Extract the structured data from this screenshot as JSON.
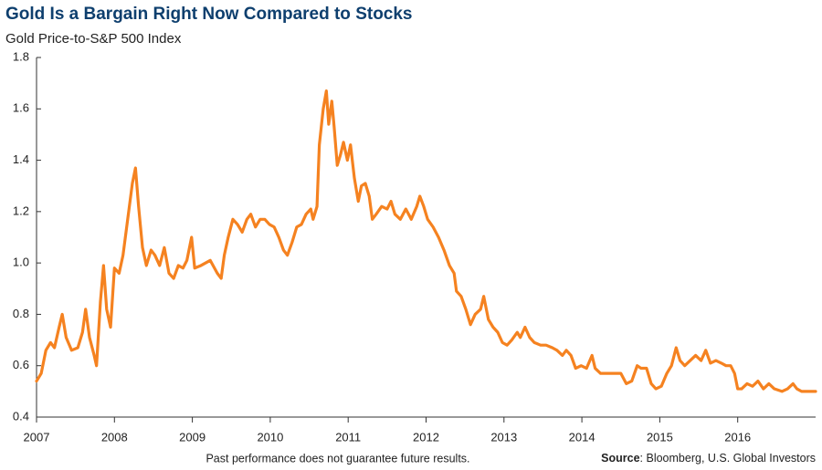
{
  "chart_data": {
    "type": "line",
    "title": "Gold Is a Bargain Right Now Compared to Stocks",
    "subtitle": "Gold Price-to-S&P 500 Index",
    "footnote": "Past performance does not guarantee future results.",
    "source": {
      "label": "Source",
      "text": ": Bloomberg, U.S. Global Investors"
    },
    "xlim": [
      2007,
      2017
    ],
    "xticks": [
      2007,
      2008,
      2009,
      2010,
      2011,
      2012,
      2013,
      2014,
      2015,
      2016
    ],
    "ylim": [
      0.4,
      1.8
    ],
    "yticks": [
      0.4,
      0.6,
      0.8,
      {
        "value": 1,
        "label": "1.0"
      },
      1.2,
      1.4,
      1.6,
      1.8
    ],
    "grid": false,
    "x": [
      2007.0,
      2007.06,
      2007.12,
      2007.18,
      2007.23,
      2007.29,
      2007.33,
      2007.38,
      2007.45,
      2007.53,
      2007.59,
      2007.63,
      2007.68,
      2007.74,
      2007.77,
      2007.82,
      2007.86,
      2007.9,
      2007.95,
      2008.0,
      2008.06,
      2008.11,
      2008.17,
      2008.23,
      2008.27,
      2008.31,
      2008.36,
      2008.41,
      2008.47,
      2008.52,
      2008.58,
      2008.64,
      2008.7,
      2008.76,
      2008.82,
      2008.88,
      2008.93,
      2008.99,
      2009.03,
      2009.11,
      2009.23,
      2009.32,
      2009.37,
      2009.41,
      2009.46,
      2009.52,
      2009.58,
      2009.64,
      2009.7,
      2009.75,
      2009.81,
      2009.87,
      2009.93,
      2009.99,
      2010.05,
      2010.11,
      2010.17,
      2010.22,
      2010.28,
      2010.34,
      2010.4,
      2010.46,
      2010.52,
      2010.55,
      2010.6,
      2010.63,
      2010.68,
      2010.72,
      2010.75,
      2010.79,
      2010.82,
      2010.86,
      2010.9,
      2010.94,
      2010.99,
      2011.03,
      2011.08,
      2011.13,
      2011.17,
      2011.22,
      2011.27,
      2011.31,
      2011.36,
      2011.43,
      2011.5,
      2011.55,
      2011.6,
      2011.67,
      2011.74,
      2011.81,
      2011.88,
      2011.92,
      2011.97,
      2012.02,
      2012.09,
      2012.16,
      2012.23,
      2012.3,
      2012.36,
      2012.39,
      2012.45,
      2012.51,
      2012.57,
      2012.63,
      2012.7,
      2012.74,
      2012.8,
      2012.86,
      2012.92,
      2012.98,
      2013.04,
      2013.1,
      2013.17,
      2013.21,
      2013.27,
      2013.33,
      2013.39,
      2013.47,
      2013.54,
      2013.62,
      2013.68,
      2013.75,
      2013.8,
      2013.86,
      2013.92,
      2013.99,
      2014.06,
      2014.13,
      2014.17,
      2014.24,
      2014.33,
      2014.41,
      2014.5,
      2014.57,
      2014.64,
      2014.71,
      2014.76,
      2014.83,
      2014.89,
      2014.95,
      2015.02,
      2015.09,
      2015.15,
      2015.21,
      2015.26,
      2015.32,
      2015.39,
      2015.46,
      2015.53,
      2015.59,
      2015.65,
      2015.72,
      2015.79,
      2015.85,
      2015.91,
      2015.96,
      2016.0,
      2016.05,
      2016.12,
      2016.19,
      2016.26,
      2016.33,
      2016.4,
      2016.47,
      2016.57,
      2016.64,
      2016.71,
      2016.76,
      2016.82,
      2016.89,
      2016.96,
      2017.0
    ],
    "series": [
      {
        "color": "#f58220",
        "values": [
          0.54,
          0.57,
          0.66,
          0.69,
          0.67,
          0.75,
          0.8,
          0.71,
          0.66,
          0.67,
          0.73,
          0.82,
          0.71,
          0.64,
          0.6,
          0.85,
          0.99,
          0.82,
          0.75,
          0.98,
          0.96,
          1.03,
          1.17,
          1.31,
          1.37,
          1.22,
          1.06,
          0.99,
          1.05,
          1.03,
          0.99,
          1.06,
          0.96,
          0.94,
          0.99,
          0.98,
          1.01,
          1.1,
          0.98,
          0.99,
          1.01,
          0.96,
          0.94,
          1.03,
          1.1,
          1.17,
          1.15,
          1.12,
          1.17,
          1.19,
          1.14,
          1.17,
          1.17,
          1.15,
          1.14,
          1.1,
          1.05,
          1.03,
          1.08,
          1.14,
          1.15,
          1.19,
          1.21,
          1.17,
          1.22,
          1.46,
          1.6,
          1.67,
          1.54,
          1.63,
          1.53,
          1.38,
          1.42,
          1.47,
          1.4,
          1.46,
          1.33,
          1.24,
          1.3,
          1.31,
          1.26,
          1.17,
          1.19,
          1.22,
          1.21,
          1.24,
          1.19,
          1.17,
          1.21,
          1.17,
          1.22,
          1.26,
          1.22,
          1.17,
          1.14,
          1.1,
          1.05,
          0.99,
          0.96,
          0.89,
          0.87,
          0.82,
          0.76,
          0.8,
          0.82,
          0.87,
          0.78,
          0.75,
          0.73,
          0.69,
          0.68,
          0.7,
          0.73,
          0.71,
          0.75,
          0.71,
          0.69,
          0.68,
          0.68,
          0.67,
          0.66,
          0.64,
          0.66,
          0.64,
          0.59,
          0.6,
          0.59,
          0.64,
          0.59,
          0.57,
          0.57,
          0.57,
          0.57,
          0.53,
          0.54,
          0.6,
          0.59,
          0.59,
          0.53,
          0.51,
          0.52,
          0.57,
          0.6,
          0.67,
          0.62,
          0.6,
          0.62,
          0.64,
          0.62,
          0.66,
          0.61,
          0.62,
          0.61,
          0.6,
          0.6,
          0.57,
          0.51,
          0.51,
          0.53,
          0.52,
          0.54,
          0.51,
          0.53,
          0.51,
          0.5,
          0.51,
          0.53,
          0.51,
          0.5,
          0.5,
          0.5,
          0.5
        ]
      }
    ]
  }
}
